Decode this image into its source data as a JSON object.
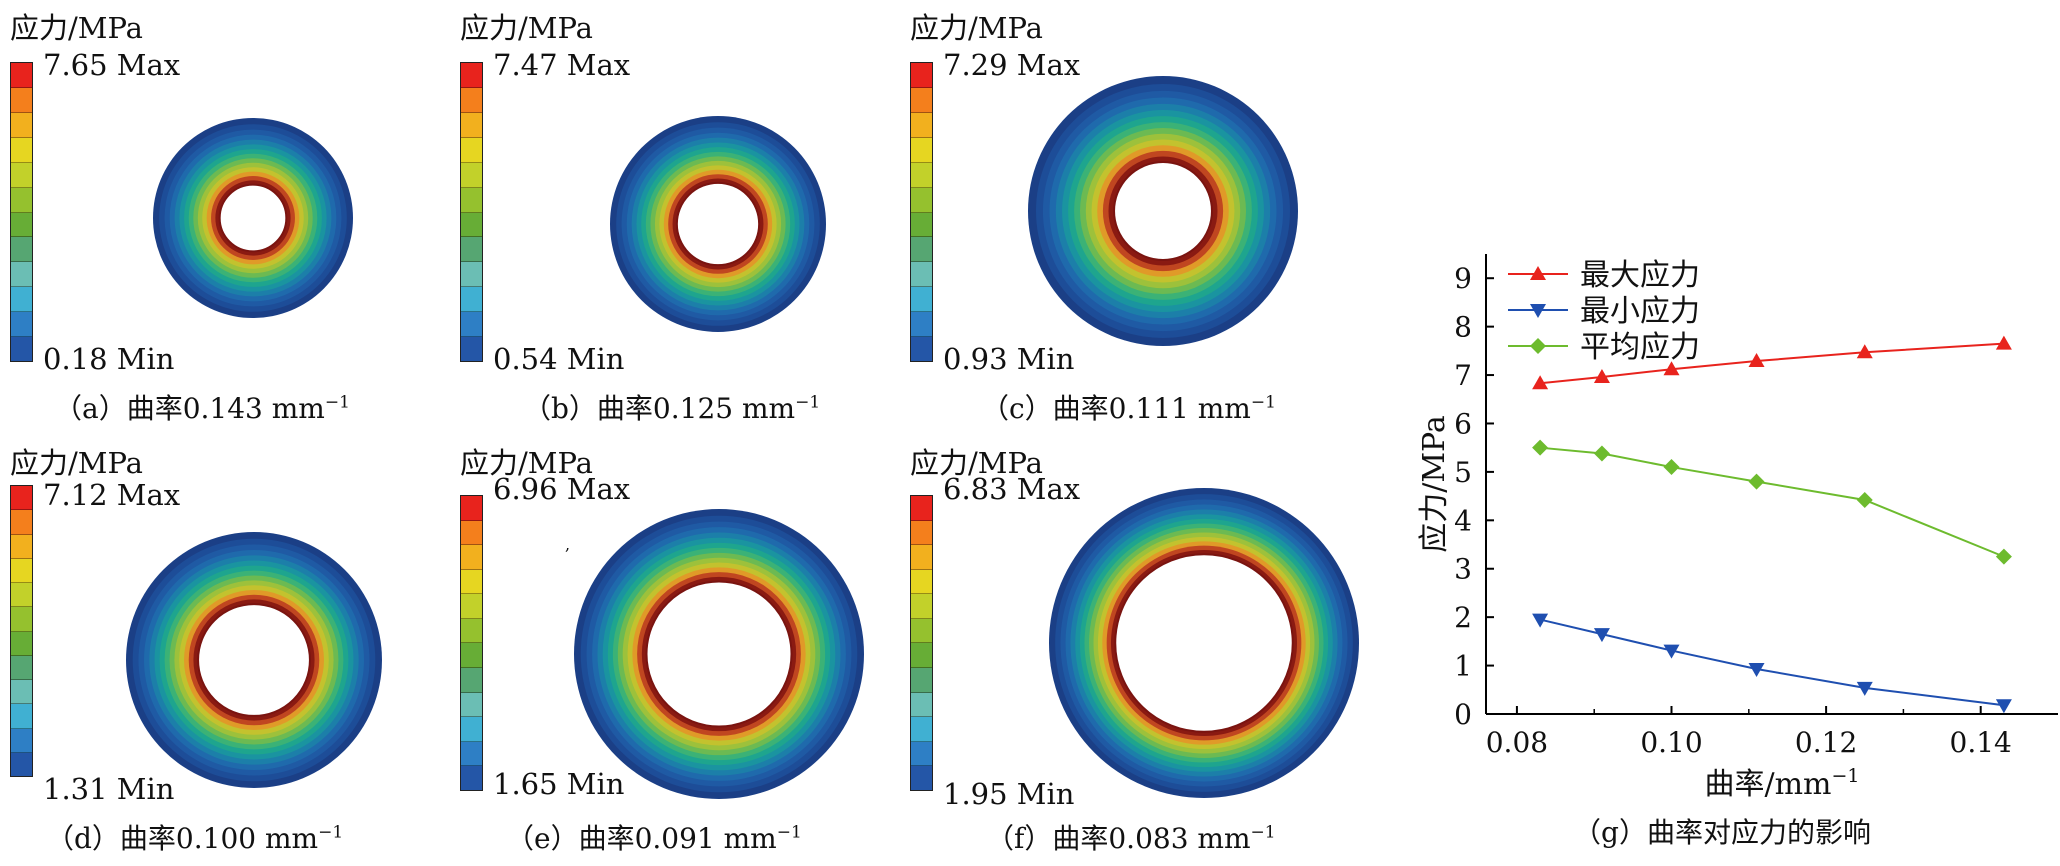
{
  "colorbar_colors": [
    "#e8231d",
    "#f47f1c",
    "#f2b01e",
    "#e6d621",
    "#c2d12a",
    "#95c12e",
    "#67ad36",
    "#56a672",
    "#6bbeb4",
    "#40b0d2",
    "#2e7fc5",
    "#2456a7"
  ],
  "ring_colors": [
    "#1b3f86",
    "#1d4d98",
    "#1f5aa4",
    "#1f6aac",
    "#1c7fa9",
    "#1a94a0",
    "#1ea58e",
    "#3bb276",
    "#6cba52",
    "#9dc13b",
    "#c3c22e",
    "#e09a28",
    "#c04620",
    "#8a1a12"
  ],
  "panels": [
    {
      "unit": "应力/MPa",
      "max": "7.65 Max",
      "min": "0.18 Min",
      "caption_pre": "（a）曲率0.143 mm",
      "caption_sup": "−1"
    },
    {
      "unit": "应力/MPa",
      "max": "7.47 Max",
      "min": "0.54 Min",
      "caption_pre": "（b）曲率0.125 mm",
      "caption_sup": "−1"
    },
    {
      "unit": "应力/MPa",
      "max": "7.29 Max",
      "min": "0.93 Min",
      "caption_pre": "（c）曲率0.111 mm",
      "caption_sup": "−1"
    },
    {
      "unit": "应力/MPa",
      "max": "7.12 Max",
      "min": "1.31 Min",
      "caption_pre": "（d）曲率0.100 mm",
      "caption_sup": "−1"
    },
    {
      "unit": "应力/MPa",
      "max": "6.96 Max",
      "min": "1.65 Min",
      "caption_pre": "（e）曲率0.091 mm",
      "caption_sup": "−1"
    },
    {
      "unit": "应力/MPa",
      "max": "6.83 Max",
      "min": "1.95 Min",
      "caption_pre": "（f）曲率0.083 mm",
      "caption_sup": "−1"
    }
  ],
  "stray_mark": ",",
  "chart_data": {
    "type": "line",
    "x": [
      0.083,
      0.091,
      0.1,
      0.111,
      0.125,
      0.143
    ],
    "series": [
      {
        "name": "最大应力",
        "values": [
          6.83,
          6.96,
          7.12,
          7.29,
          7.47,
          7.65
        ],
        "color": "#e8231d",
        "marker": "triangle-up"
      },
      {
        "name": "最小应力",
        "values": [
          1.95,
          1.65,
          1.31,
          0.93,
          0.54,
          0.18
        ],
        "color": "#1f4fb0",
        "marker": "triangle-down"
      },
      {
        "name": "平均应力",
        "values": [
          5.5,
          5.38,
          5.1,
          4.8,
          4.42,
          3.25
        ],
        "color": "#6dbb2e",
        "marker": "diamond"
      }
    ],
    "xlabel_pre": "曲率/mm",
    "xlabel_sup": "−1",
    "ylabel": "应力/MPa",
    "xlim": [
      0.076,
      0.15
    ],
    "ylim": [
      0,
      9.5
    ],
    "xticks": [
      "0.08",
      "0.10",
      "0.12",
      "0.14"
    ],
    "xtick_values": [
      0.08,
      0.1,
      0.12,
      0.14
    ],
    "yticks": [
      "0",
      "1",
      "2",
      "3",
      "4",
      "5",
      "6",
      "7",
      "8",
      "9"
    ],
    "grid": false,
    "legend_position": "top-left",
    "caption": "（g）曲率对应力的影响"
  }
}
